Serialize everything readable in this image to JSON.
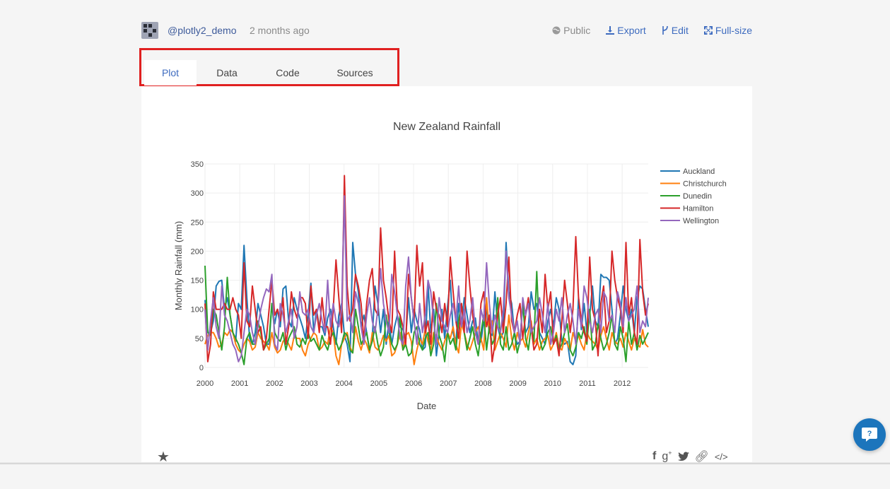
{
  "header": {
    "username": "@plotly2_demo",
    "time_ago": "2 months ago",
    "public_label": "Public",
    "export_label": "Export",
    "edit_label": "Edit",
    "fullsize_label": "Full-size"
  },
  "tabs": [
    {
      "label": "Plot",
      "active": true
    },
    {
      "label": "Data",
      "active": false
    },
    {
      "label": "Code",
      "active": false
    },
    {
      "label": "Sources",
      "active": false
    }
  ],
  "chart_data": {
    "type": "line",
    "title": "New Zealand Rainfall",
    "xlabel": "Date",
    "ylabel": "Monthly Rainfall (mm)",
    "xlim": [
      "2000-01",
      "2012-10"
    ],
    "ylim": [
      0,
      350
    ],
    "yticks": [
      0,
      50,
      100,
      150,
      200,
      250,
      300,
      350
    ],
    "xticks": [
      "2000",
      "2001",
      "2002",
      "2003",
      "2004",
      "2005",
      "2006",
      "2007",
      "2008",
      "2009",
      "2010",
      "2011",
      "2012"
    ],
    "grid": true,
    "legend_position": "top-right",
    "start_month": "2000-01",
    "series": [
      {
        "name": "Auckland",
        "color": "#1f77b4",
        "values": [
          116,
          60,
          60,
          80,
          140,
          148,
          150,
          100,
          120,
          90,
          60,
          45,
          110,
          100,
          210,
          120,
          50,
          40,
          60,
          110,
          90,
          70,
          40,
          40,
          110,
          75,
          100,
          70,
          135,
          140,
          80,
          70,
          120,
          100,
          85,
          70,
          50,
          90,
          145,
          60,
          100,
          70,
          70,
          55,
          85,
          100,
          70,
          40,
          90,
          110,
          55,
          40,
          10,
          215,
          160,
          130,
          70,
          90,
          60,
          30,
          50,
          140,
          110,
          60,
          100,
          40,
          80,
          40,
          70,
          90,
          70,
          65,
          50,
          120,
          60,
          100,
          80,
          65,
          30,
          35,
          145,
          60,
          100,
          20,
          60,
          100,
          50,
          105,
          150,
          60,
          40,
          110,
          70,
          120,
          90,
          60,
          80,
          85,
          40,
          45,
          80,
          100,
          60,
          55,
          130,
          70,
          50,
          60,
          215,
          130,
          110,
          60,
          40,
          45,
          110,
          60,
          70,
          130,
          100,
          110,
          60,
          50,
          40,
          80,
          100,
          70,
          120,
          100,
          45,
          40,
          45,
          10,
          5,
          20,
          120,
          65,
          110,
          60,
          90,
          140,
          80,
          70,
          160,
          155,
          155,
          150,
          100,
          40,
          50,
          90,
          140,
          100,
          80,
          100,
          60,
          120,
          140,
          135,
          100,
          70
        ]
      },
      {
        "name": "Christchurch",
        "color": "#ff7f0e",
        "values": [
          40,
          55,
          60,
          60,
          50,
          35,
          40,
          60,
          55,
          65,
          60,
          40,
          30,
          25,
          40,
          50,
          45,
          30,
          35,
          60,
          50,
          45,
          40,
          30,
          60,
          35,
          25,
          30,
          45,
          50,
          40,
          30,
          55,
          50,
          50,
          30,
          20,
          40,
          50,
          60,
          55,
          30,
          35,
          45,
          40,
          70,
          60,
          20,
          5,
          40,
          50,
          60,
          35,
          25,
          70,
          45,
          30,
          50,
          40,
          25,
          60,
          35,
          30,
          40,
          55,
          45,
          55,
          20,
          25,
          40,
          60,
          30,
          55,
          60,
          45,
          5,
          30,
          50,
          40,
          65,
          45,
          30,
          60,
          55,
          40,
          30,
          45,
          60,
          50,
          70,
          40,
          25,
          75,
          60,
          40,
          30,
          45,
          60,
          70,
          50,
          30,
          120,
          60,
          80,
          30,
          45,
          60,
          50,
          35,
          90,
          50,
          30,
          60,
          45,
          50,
          35,
          60,
          80,
          40,
          50,
          30,
          45,
          50,
          55,
          30,
          40,
          60,
          35,
          30,
          50,
          40,
          30,
          60,
          45,
          55,
          40,
          30,
          60,
          50,
          45,
          40,
          30,
          55,
          70,
          50,
          30,
          60,
          45,
          40,
          50,
          35,
          60,
          45,
          30,
          50,
          40,
          35,
          65,
          40,
          35
        ]
      },
      {
        "name": "Dunedin",
        "color": "#2ca02c",
        "values": [
          175,
          60,
          55,
          100,
          90,
          60,
          30,
          70,
          155,
          90,
          60,
          50,
          40,
          25,
          5,
          50,
          60,
          40,
          40,
          80,
          60,
          30,
          40,
          50,
          110,
          60,
          50,
          45,
          60,
          30,
          50,
          60,
          70,
          40,
          35,
          50,
          40,
          60,
          45,
          50,
          40,
          30,
          55,
          40,
          30,
          50,
          60,
          45,
          30,
          40,
          60,
          55,
          30,
          25,
          100,
          70,
          40,
          50,
          60,
          30,
          45,
          70,
          40,
          20,
          35,
          90,
          60,
          40,
          30,
          40,
          90,
          30,
          40,
          20,
          25,
          60,
          70,
          40,
          30,
          50,
          60,
          20,
          40,
          110,
          55,
          40,
          10,
          60,
          40,
          50,
          30,
          80,
          110,
          60,
          30,
          50,
          70,
          40,
          20,
          60,
          90,
          30,
          70,
          40,
          50,
          120,
          40,
          30,
          70,
          30,
          40,
          60,
          25,
          45,
          110,
          50,
          30,
          70,
          45,
          165,
          50,
          30,
          40,
          60,
          70,
          40,
          55,
          30,
          40,
          60,
          75,
          30,
          20,
          35,
          60,
          50,
          70,
          40,
          100,
          30,
          40,
          75,
          50,
          30,
          40,
          60,
          90,
          40,
          30,
          70,
          50,
          10,
          80,
          40,
          60,
          30,
          55,
          40,
          50,
          60
        ]
      },
      {
        "name": "Hamilton",
        "color": "#d62728",
        "values": [
          110,
          10,
          40,
          130,
          100,
          100,
          100,
          110,
          100,
          100,
          120,
          100,
          90,
          50,
          180,
          80,
          70,
          140,
          100,
          60,
          70,
          30,
          50,
          100,
          150,
          90,
          100,
          80,
          120,
          40,
          70,
          130,
          100,
          85,
          120,
          120,
          110,
          50,
          140,
          90,
          100,
          60,
          120,
          70,
          70,
          40,
          100,
          185,
          120,
          60,
          330,
          140,
          80,
          100,
          160,
          140,
          110,
          45,
          110,
          150,
          170,
          100,
          90,
          240,
          150,
          120,
          80,
          60,
          200,
          100,
          90,
          70,
          40,
          160,
          120,
          80,
          210,
          140,
          180,
          60,
          80,
          40,
          130,
          100,
          90,
          60,
          110,
          70,
          190,
          130,
          80,
          50,
          110,
          60,
          200,
          140,
          90,
          60,
          40,
          110,
          130,
          70,
          90,
          10,
          40,
          90,
          120,
          60,
          110,
          190,
          80,
          60,
          90,
          110,
          50,
          90,
          120,
          70,
          30,
          40,
          100,
          60,
          160,
          100,
          130,
          40,
          50,
          20,
          80,
          150,
          110,
          60,
          100,
          225,
          120,
          80,
          60,
          45,
          190,
          100,
          80,
          20,
          110,
          140,
          60,
          80,
          200,
          150,
          120,
          100,
          60,
          215,
          90,
          120,
          60,
          40,
          220,
          130,
          90,
          110
        ]
      },
      {
        "name": "Wellington",
        "color": "#9467bd",
        "values": [
          100,
          30,
          80,
          120,
          70,
          50,
          140,
          90,
          80,
          60,
          40,
          30,
          10,
          20,
          60,
          100,
          90,
          60,
          40,
          70,
          100,
          120,
          135,
          130,
          160,
          40,
          30,
          110,
          90,
          60,
          80,
          100,
          50,
          70,
          130,
          95,
          90,
          100,
          70,
          60,
          90,
          110,
          80,
          60,
          150,
          70,
          110,
          80,
          70,
          100,
          295,
          80,
          90,
          60,
          130,
          110,
          70,
          40,
          90,
          120,
          80,
          60,
          100,
          170,
          110,
          80,
          60,
          160,
          130,
          90,
          50,
          40,
          140,
          190,
          120,
          80,
          40,
          110,
          60,
          90,
          150,
          130,
          80,
          40,
          120,
          80,
          70,
          60,
          90,
          110,
          80,
          140,
          70,
          100,
          60,
          80,
          120,
          60,
          40,
          100,
          80,
          180,
          110,
          60,
          90,
          70,
          60,
          100,
          200,
          120,
          90,
          60,
          80,
          40,
          120,
          90,
          110,
          60,
          70,
          80,
          120,
          90,
          60,
          110,
          40,
          60,
          100,
          80,
          120,
          60,
          90,
          110,
          80,
          40,
          100,
          70,
          140,
          120,
          80,
          60,
          90,
          100,
          60,
          130,
          120,
          80,
          90,
          60,
          130,
          110,
          70,
          120,
          80,
          90,
          100,
          140,
          60,
          80,
          70,
          120
        ]
      }
    ]
  }
}
